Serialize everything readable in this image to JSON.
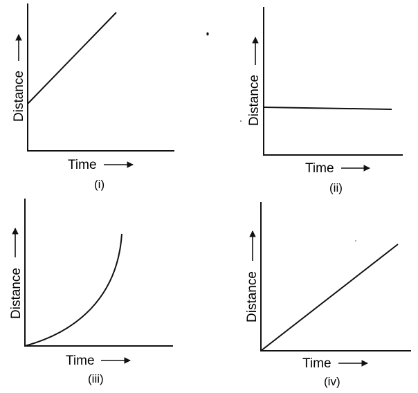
{
  "figure": {
    "ink_color": "#111111",
    "background_color": "#ffffff",
    "panels": [
      {
        "caption": "(i)",
        "x_label": "Time",
        "y_label": "Distance",
        "curve": "straight line rising from a non-zero starting distance"
      },
      {
        "caption": "(ii)",
        "x_label": "Time",
        "y_label": "Distance",
        "curve": "horizontal line at constant distance"
      },
      {
        "caption": "(iii)",
        "x_label": "Time",
        "y_label": "Distance",
        "curve": "upward-bending curve from the origin"
      },
      {
        "caption": "(iv)",
        "x_label": "Time",
        "y_label": "Distance",
        "curve": "straight line rising from the origin"
      }
    ]
  }
}
